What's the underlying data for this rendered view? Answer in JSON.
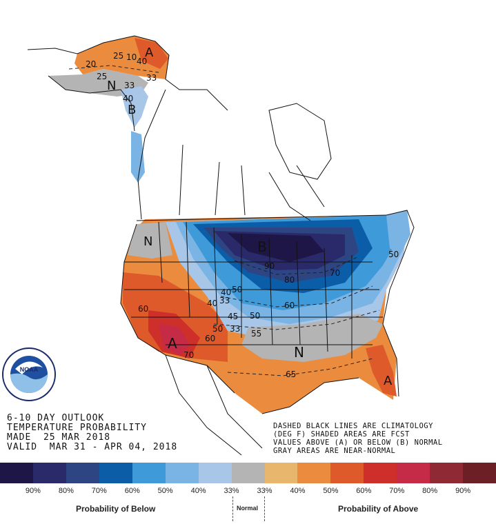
{
  "title": {
    "line1": "6-10 DAY OUTLOOK",
    "line2": "TEMPERATURE PROBABILITY",
    "line3": "MADE  25 MAR 2018",
    "line4": "VALID  MAR 31 - APR 04, 2018"
  },
  "notes": {
    "line1": "DASHED BLACK LINES ARE CLIMATOLOGY",
    "line2": "(DEG F) SHADED AREAS ARE FCST",
    "line3": "VALUES ABOVE (A) OR BELOW (B) NORMAL",
    "line4": "GRAY AREAS ARE NEAR-NORMAL"
  },
  "logo": {
    "text": "NOAA"
  },
  "map_labels": {
    "below": "B",
    "above": "A",
    "normal": "N"
  },
  "contour_values": [
    "20",
    "25",
    "33",
    "40",
    "50",
    "60",
    "70",
    "80",
    "90",
    "45",
    "55",
    "65",
    "10"
  ],
  "legend": {
    "colors": [
      "#1e1646",
      "#2a2a6a",
      "#2e4583",
      "#0c5da8",
      "#3f9ad9",
      "#7ab4e4",
      "#a7c6e8",
      "#b4b4b4",
      "#e8b66c",
      "#eb8b3e",
      "#df5a2b",
      "#cf2f2b",
      "#c52a47",
      "#8f2a35",
      "#6c1f25"
    ],
    "ticks": [
      "90%",
      "80%",
      "70%",
      "60%",
      "50%",
      "40%",
      "33%",
      "33%",
      "40%",
      "50%",
      "60%",
      "70%",
      "80%",
      "90%"
    ],
    "below_caption": "Probability of Below",
    "normal_caption": "Normal",
    "above_caption": "Probability of Above"
  }
}
